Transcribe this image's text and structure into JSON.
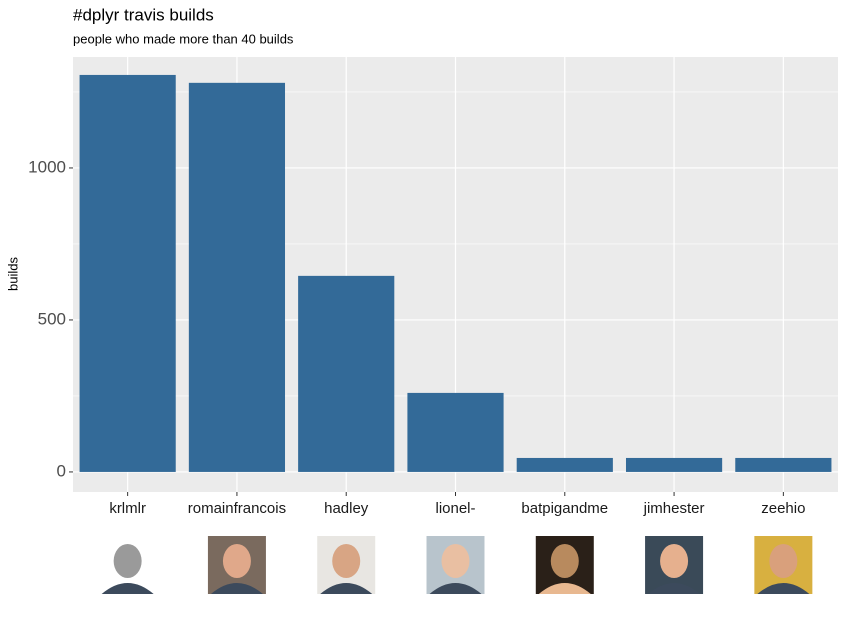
{
  "chart_data": {
    "type": "bar",
    "title": "#dplyr travis builds",
    "subtitle": "people who made more than 40 builds",
    "y_label": "builds",
    "categories": [
      "krlmlr",
      "romainfrancois",
      "hadley",
      "lionel-",
      "batpigandme",
      "jimhester",
      "zeehio"
    ],
    "values": [
      1306,
      1280,
      645,
      260,
      46,
      46,
      46
    ],
    "color": "#336a98",
    "ylim": [
      -66,
      1365
    ],
    "yticks": [
      0,
      500,
      1000
    ],
    "minor_yticks": [
      250,
      750,
      1250
    ],
    "grid": true
  }
}
